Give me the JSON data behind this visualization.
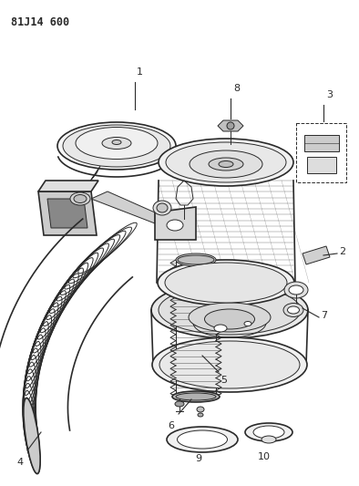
{
  "title": "81J14 600",
  "bg_color": "#ffffff",
  "line_color": "#2a2a2a",
  "label_color": "#2a2a2a",
  "figsize": [
    3.94,
    5.33
  ],
  "dpi": 100
}
